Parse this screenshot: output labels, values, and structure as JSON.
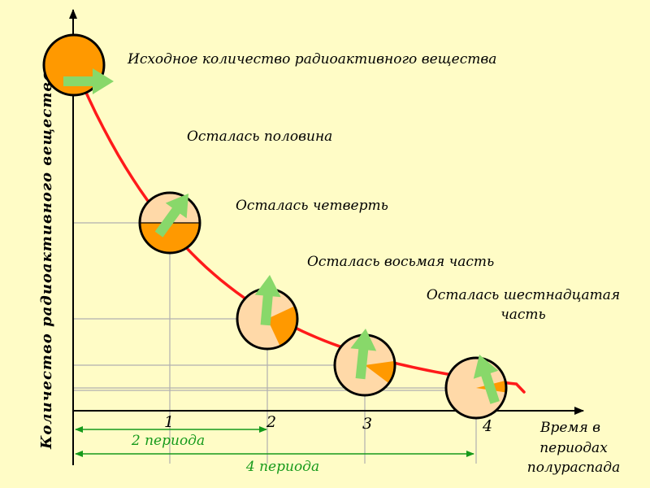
{
  "diagram": {
    "y_axis_label": "Количество радиоактивного вещества",
    "x_axis_label": [
      "Время в",
      "периодах",
      "полураспада"
    ],
    "ticks": [
      "1",
      "2",
      "3",
      "4"
    ],
    "stages": [
      {
        "id": "initial",
        "label": [
          "Исходное количество радиоактивного вещества"
        ],
        "remaining": 1
      },
      {
        "id": "half",
        "label": [
          "Осталась половина"
        ],
        "remaining": 0.5
      },
      {
        "id": "quarter",
        "label": [
          "Осталась четверть"
        ],
        "remaining": 0.25
      },
      {
        "id": "eighth",
        "label": [
          "Осталась восьмая часть"
        ],
        "remaining": 0.125
      },
      {
        "id": "sixteenth",
        "label": [
          "Осталась шестнадцатая",
          "часть"
        ],
        "remaining": 0.0625
      }
    ],
    "periods": [
      {
        "label": "2 периода",
        "span": 2
      },
      {
        "label": "4 периода",
        "span": 4
      }
    ],
    "colors": {
      "background": "#fffcc6",
      "curve": "#ff1a1a",
      "substance": "#ff9900",
      "decayed": "#ffd9a8",
      "arrows": "#88d86a",
      "period_lines": "#169a1b",
      "axes": "#000000",
      "guides": "#b0b0b0"
    }
  }
}
